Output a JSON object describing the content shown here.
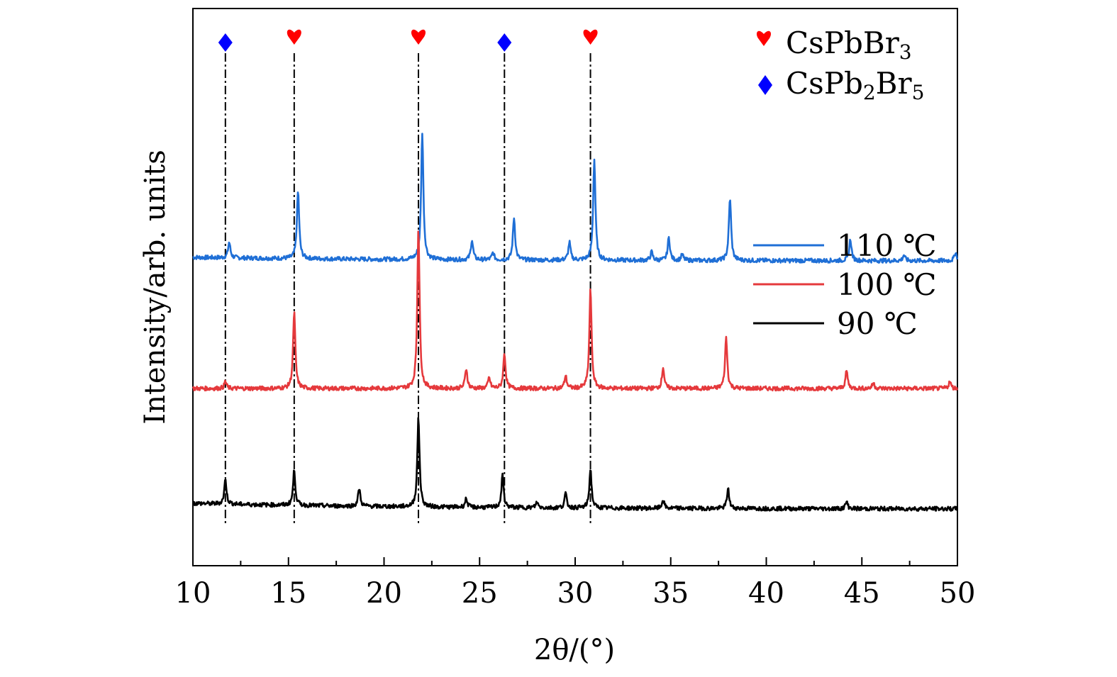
{
  "chart_data": {
    "type": "line",
    "title": "",
    "xlabel": "2θ/(°)",
    "ylabel": "Intensity/arb. units",
    "xlim": [
      10,
      50
    ],
    "xticks": [
      10,
      15,
      20,
      25,
      30,
      35,
      40,
      45,
      50
    ],
    "xtick_labels": [
      "10",
      "15",
      "20",
      "25",
      "30",
      "35",
      "40",
      "45",
      "50"
    ],
    "grid": false,
    "y_units": "arbitrary, traces vertically offset",
    "series": [
      {
        "name": "110 ℃",
        "legend_label": "110 ℃",
        "color": "#1f6fd6",
        "offset": 180,
        "baseline": 5,
        "peaks": [
          [
            11.9,
            22
          ],
          [
            15.5,
            95
          ],
          [
            22.0,
            180
          ],
          [
            24.6,
            28
          ],
          [
            25.7,
            10
          ],
          [
            26.8,
            60
          ],
          [
            29.7,
            25
          ],
          [
            31.0,
            142
          ],
          [
            34.0,
            12
          ],
          [
            34.9,
            32
          ],
          [
            35.6,
            8
          ],
          [
            38.1,
            88
          ],
          [
            44.4,
            30
          ],
          [
            47.2,
            8
          ],
          [
            49.9,
            12
          ]
        ]
      },
      {
        "name": "100 ℃",
        "legend_label": "100 ℃",
        "color": "#e5393c",
        "offset": 0,
        "baseline": 0,
        "peaks": [
          [
            11.7,
            10
          ],
          [
            15.3,
            108
          ],
          [
            21.8,
            228
          ],
          [
            24.3,
            28
          ],
          [
            25.5,
            15
          ],
          [
            26.3,
            50
          ],
          [
            29.5,
            18
          ],
          [
            30.8,
            140
          ],
          [
            34.6,
            30
          ],
          [
            37.9,
            72
          ],
          [
            44.2,
            25
          ],
          [
            45.6,
            8
          ],
          [
            49.6,
            10
          ]
        ]
      },
      {
        "name": "90 ℃",
        "legend_label": "90 ℃",
        "color": "#000000",
        "offset": -170,
        "baseline": 8,
        "peaks": [
          [
            11.7,
            35
          ],
          [
            15.3,
            50
          ],
          [
            18.7,
            25
          ],
          [
            21.8,
            125
          ],
          [
            24.3,
            12
          ],
          [
            26.2,
            45
          ],
          [
            28.0,
            8
          ],
          [
            29.5,
            20
          ],
          [
            30.8,
            55
          ],
          [
            34.6,
            12
          ],
          [
            38.0,
            28
          ],
          [
            44.2,
            10
          ]
        ]
      }
    ],
    "reference_lines": [
      {
        "x": 11.7,
        "phase": "CsPb2Br5"
      },
      {
        "x": 15.3,
        "phase": "CsPbBr3"
      },
      {
        "x": 21.8,
        "phase": "CsPbBr3"
      },
      {
        "x": 26.3,
        "phase": "CsPb2Br5"
      },
      {
        "x": 30.8,
        "phase": "CsPbBr3"
      }
    ],
    "phase_legend": [
      {
        "symbol": "heart",
        "color": "#ff0000",
        "base": "CsPbBr",
        "sub": "3"
      },
      {
        "symbol": "diamond",
        "color": "#0000ff",
        "base": "CsPb",
        "sub": "2",
        "mid": "Br",
        "sub2": "5"
      }
    ],
    "legend_placement": "right"
  }
}
